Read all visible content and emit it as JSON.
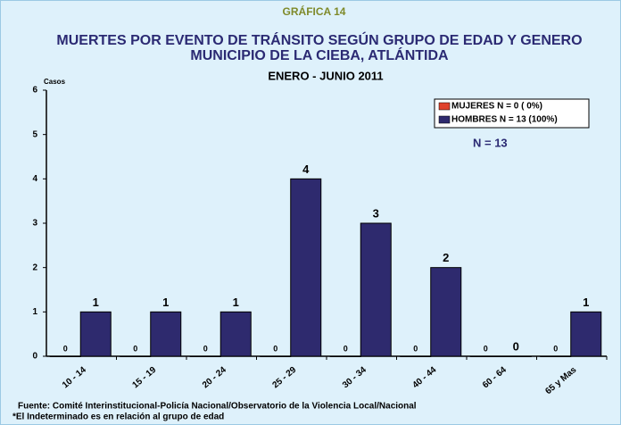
{
  "chart_data": {
    "type": "bar",
    "supertitle": "GRÁFICA 14",
    "title": [
      "MUERTES POR EVENTO DE TRÁNSITO SEGÚN GRUPO DE EDAD Y GENERO",
      "MUNICIPIO DE LA CIEBA, ATLÁNTIDA"
    ],
    "subtitle": "ENERO - JUNIO 2011",
    "ylabel": "Casos",
    "annotation": "N = 13",
    "categories": [
      "10 - 14",
      "15 - 19",
      "20 - 24",
      "25 - 29",
      "30 - 34",
      "40 - 44",
      "60 - 64",
      "65 y Mas"
    ],
    "series": [
      {
        "name": "MUJERES  N = 0 ( 0%)",
        "color": "#e0412b",
        "values": [
          0,
          0,
          0,
          0,
          0,
          0,
          0,
          0
        ]
      },
      {
        "name": "HOMBRES  N = 13 (100%)",
        "color": "#2e2a6e",
        "values": [
          1,
          1,
          1,
          4,
          3,
          2,
          0,
          1
        ]
      }
    ],
    "ylim": [
      0,
      6
    ],
    "yticks": [
      0,
      1,
      2,
      3,
      4,
      5,
      6
    ],
    "grid": false,
    "legend": "upper right",
    "notes": [
      "Fuente: Comité Interinstitucional-Policía Nacional/Observatorio de la Violencia Local/Nacional",
      "*El Indeterminado es en relación al grupo de edad"
    ]
  }
}
